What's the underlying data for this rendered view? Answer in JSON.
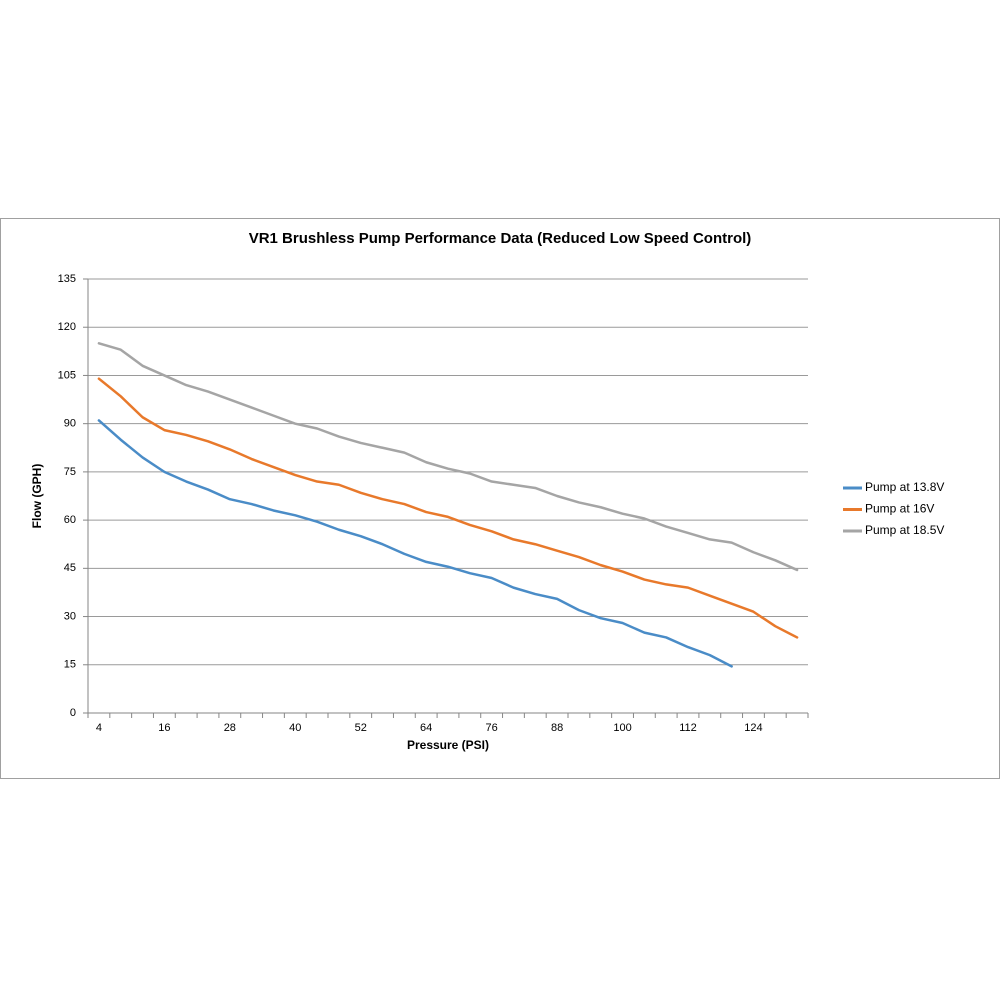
{
  "chart_data": {
    "type": "line",
    "title": "VR1 Brushless Pump Performance Data (Reduced Low Speed  Control)",
    "x_label": "Pressure (PSI)",
    "y_label": "Flow (GPH)",
    "categories": [
      "4",
      null,
      null,
      "16",
      null,
      null,
      "28",
      null,
      null,
      "40",
      null,
      null,
      "52",
      null,
      null,
      "64",
      null,
      null,
      "76",
      null,
      null,
      "88",
      null,
      null,
      "100",
      null,
      null,
      "112",
      null,
      null,
      "124",
      null,
      null
    ],
    "series": [
      {
        "name": "Pump at 13.8V",
        "color": "#4a8cc7",
        "values": [
          91,
          85,
          79.5,
          75,
          72,
          69.5,
          66.5,
          65,
          63,
          61.5,
          59.5,
          57,
          55,
          52.5,
          49.5,
          47,
          45.5,
          43.5,
          42,
          39,
          37,
          35.5,
          32,
          29.5,
          28,
          25,
          23.5,
          20.5,
          18,
          14.5,
          null,
          null,
          null
        ]
      },
      {
        "name": "Pump at 16V",
        "color": "#e8792b",
        "values": [
          104,
          98.5,
          92,
          88,
          86.5,
          84.5,
          82,
          79,
          76.5,
          74,
          72,
          71,
          68.5,
          66.5,
          65,
          62.5,
          61,
          58.5,
          56.5,
          54,
          52.5,
          50.5,
          48.5,
          46,
          44,
          41.5,
          40,
          39,
          36.5,
          34,
          31.5,
          27,
          23.5
        ]
      },
      {
        "name": "Pump at 18.5V",
        "color": "#a5a5a5",
        "values": [
          115,
          113,
          108,
          105,
          102,
          100,
          97.5,
          95,
          92.5,
          90,
          88.5,
          86,
          84,
          82.5,
          81,
          78,
          76,
          74.5,
          72,
          71,
          70,
          67.5,
          65.5,
          64,
          62,
          60.5,
          58,
          56,
          54,
          53,
          50,
          47.5,
          44.5
        ]
      }
    ],
    "ylim": [
      0,
      135
    ],
    "yticks": [
      0,
      15,
      30,
      45,
      60,
      75,
      90,
      105,
      120,
      135
    ],
    "grid": true,
    "legend": "right"
  }
}
